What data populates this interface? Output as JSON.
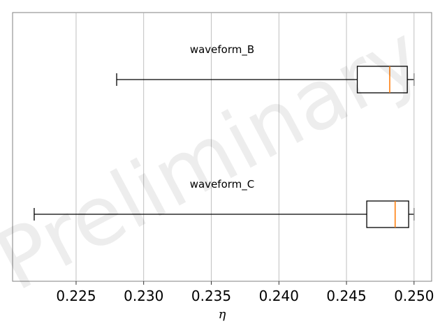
{
  "watermark": "Preliminary",
  "chart_data": {
    "type": "boxplot",
    "orientation": "horizontal",
    "xlabel": "η",
    "xlim": [
      0.2203,
      0.2513
    ],
    "xticks": [
      0.225,
      0.23,
      0.235,
      0.24,
      0.245,
      0.25
    ],
    "xtick_labels": [
      "0.225",
      "0.230",
      "0.235",
      "0.240",
      "0.245",
      "0.250"
    ],
    "grid": "vertical",
    "series": [
      {
        "name": "waveform_B",
        "whisker_low": 0.228,
        "q1": 0.2458,
        "median": 0.2482,
        "q3": 0.2495,
        "whisker_high": 0.25
      },
      {
        "name": "waveform_C",
        "whisker_low": 0.2219,
        "q1": 0.2465,
        "median": 0.2486,
        "q3": 0.2496,
        "whisker_high": 0.25
      }
    ],
    "colors": {
      "box": "#000000",
      "median": "#ff7f0e",
      "grid": "#b0b0b0",
      "cap": "#808080"
    }
  }
}
